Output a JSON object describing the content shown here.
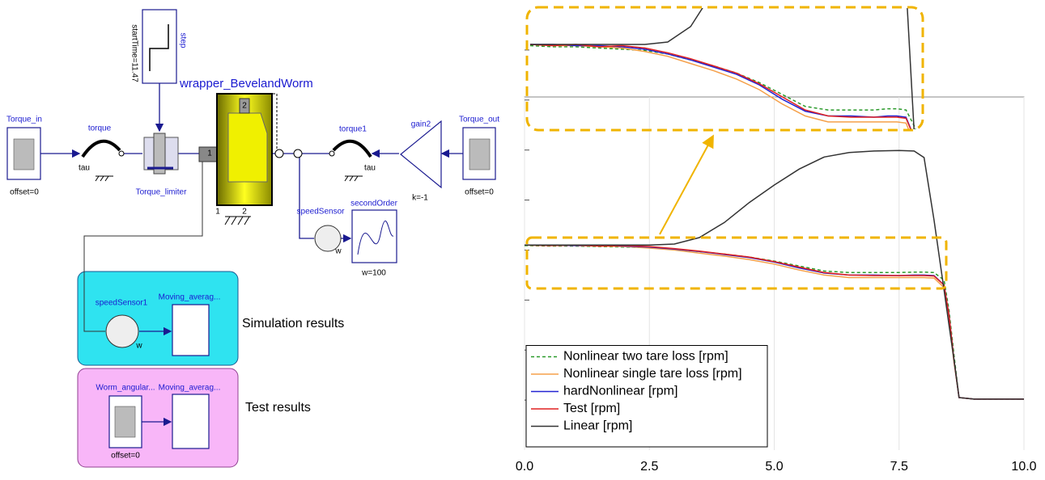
{
  "diagram": {
    "labels": [
      "startTime=11.47",
      "step",
      "wrapper_BevelandWorm",
      "Torque_in",
      "offset=0",
      "torque",
      "tau",
      "Torque_limiter",
      "1",
      "1",
      "2",
      "2",
      "torque1",
      "tau",
      "gain2",
      "k=-1",
      "Torque_out",
      "offset=0",
      "speedSensor",
      "w",
      "secondOrder",
      "w=100",
      "speedSensor1",
      "w",
      "Moving_averag...",
      "Simulation results",
      "Worm_angular...",
      "offset=0",
      "Moving_averag...",
      "Test results"
    ]
  },
  "chart_data": {
    "type": "line",
    "x": [
      0,
      0.5,
      1,
      1.5,
      2,
      2.5,
      3,
      3.5,
      4,
      4.5,
      5,
      5.5,
      6,
      6.5,
      7,
      7.5,
      7.8,
      8,
      8.2,
      8.4,
      8.5,
      8.6,
      8.7,
      9,
      9.5,
      10
    ],
    "series": [
      {
        "name": "Nonlinear two tare loss [rpm]",
        "color": "#2a9a2a",
        "dashed": true,
        "values": [
          4.09,
          4.08,
          4.08,
          4.07,
          4.06,
          4.05,
          4.02,
          3.97,
          3.92,
          3.86,
          3.78,
          3.68,
          3.58,
          3.55,
          3.55,
          3.55,
          3.56,
          3.56,
          3.55,
          3.4,
          2.8,
          1.9,
          1.05,
          1.02,
          1.02,
          1.02
        ]
      },
      {
        "name": "Nonlinear single tare loss [rpm]",
        "color": "#f5a04a",
        "values": [
          4.1,
          4.09,
          4.09,
          4.08,
          4.07,
          4.04,
          4.0,
          3.94,
          3.88,
          3.81,
          3.72,
          3.6,
          3.5,
          3.45,
          3.45,
          3.45,
          3.45,
          3.45,
          3.44,
          3.25,
          2.6,
          1.75,
          1.05,
          1.02,
          1.02,
          1.02
        ]
      },
      {
        "name": "hardNonlinear [rpm]",
        "color": "#2323d2",
        "values": [
          4.1,
          4.1,
          4.09,
          4.09,
          4.08,
          4.06,
          4.02,
          3.97,
          3.91,
          3.85,
          3.76,
          3.64,
          3.54,
          3.5,
          3.5,
          3.49,
          3.5,
          3.5,
          3.49,
          3.3,
          2.7,
          1.8,
          1.05,
          1.02,
          1.02,
          1.02
        ]
      },
      {
        "name": "Test [rpm]",
        "color": "#e02020",
        "values": [
          4.1,
          4.09,
          4.1,
          4.08,
          4.09,
          4.07,
          4.03,
          3.98,
          3.92,
          3.86,
          3.77,
          3.66,
          3.55,
          3.5,
          3.49,
          3.49,
          3.49,
          3.49,
          3.48,
          3.3,
          2.7,
          1.8,
          1.05,
          1.02,
          1.02,
          1.02
        ]
      },
      {
        "name": "Linear [rpm]",
        "color": "#333333",
        "values": [
          4.1,
          4.1,
          4.1,
          4.1,
          4.1,
          4.1,
          4.12,
          4.25,
          4.55,
          4.95,
          5.3,
          5.62,
          5.86,
          5.95,
          5.98,
          5.99,
          5.98,
          5.85,
          4.6,
          3.2,
          2.5,
          1.8,
          1.05,
          1.02,
          1.02,
          1.02
        ]
      }
    ],
    "xlim": [
      0,
      10
    ],
    "xticks": [
      {
        "value": 0,
        "label": "0.0"
      },
      2.5,
      {
        "value": 5,
        "label": "5.0"
      },
      7.5,
      {
        "value": 10,
        "label": "10.0"
      }
    ],
    "ylim": [
      0,
      9
    ],
    "yticks": [
      1,
      2,
      3,
      4,
      5,
      6,
      7,
      8
    ],
    "grid": true,
    "legend": "lower left"
  }
}
